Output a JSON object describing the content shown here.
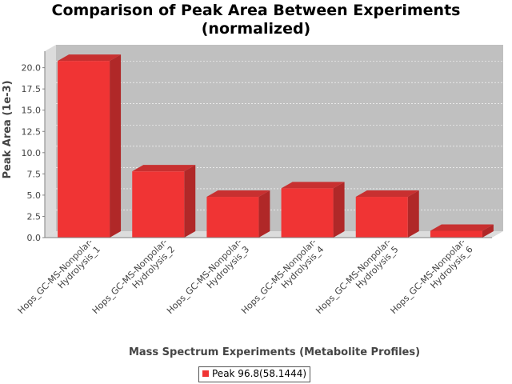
{
  "chart_data": {
    "type": "bar",
    "title_lines": [
      "Comparison of Peak Area Between Experiments",
      "(normalized)"
    ],
    "xlabel": "Mass Spectrum Experiments (Metabolite Profiles)",
    "ylabel": "Peak Area (1e-3)",
    "categories": [
      [
        "Hops_GC-MS-Nonpolar-",
        "Hydrolysis_1"
      ],
      [
        "Hops_GC-MS-Nonpolar-",
        "Hydrolysis_2"
      ],
      [
        "Hops_GC-MS-Nonpolar-",
        "Hydrolysis_3"
      ],
      [
        "Hops_GC-MS-Nonpolar-",
        "Hydrolysis_4"
      ],
      [
        "Hops_GC-MS-Nonpolar-",
        "Hydrolysis_5"
      ],
      [
        "Hops_GC-MS-Nonpolar-",
        "Hydrolysis_6"
      ]
    ],
    "series": [
      {
        "name": "Peak 96.8(58.1444)",
        "values": [
          20.8,
          7.8,
          4.8,
          5.8,
          4.8,
          0.8
        ]
      }
    ],
    "yticks": [
      "0.0",
      "2.5",
      "5.0",
      "7.5",
      "10.0",
      "12.5",
      "15.0",
      "17.5",
      "20.0"
    ],
    "ylim": [
      0,
      21.5
    ],
    "grid": true,
    "legend_position": "bottom",
    "colors": {
      "bar_front": "#f03434",
      "bar_top": "#c83030",
      "bar_side": "#b02828",
      "plot_back": "#c0c0c0",
      "plot_floor": "#dcdcdc",
      "axis": "#808080"
    }
  }
}
